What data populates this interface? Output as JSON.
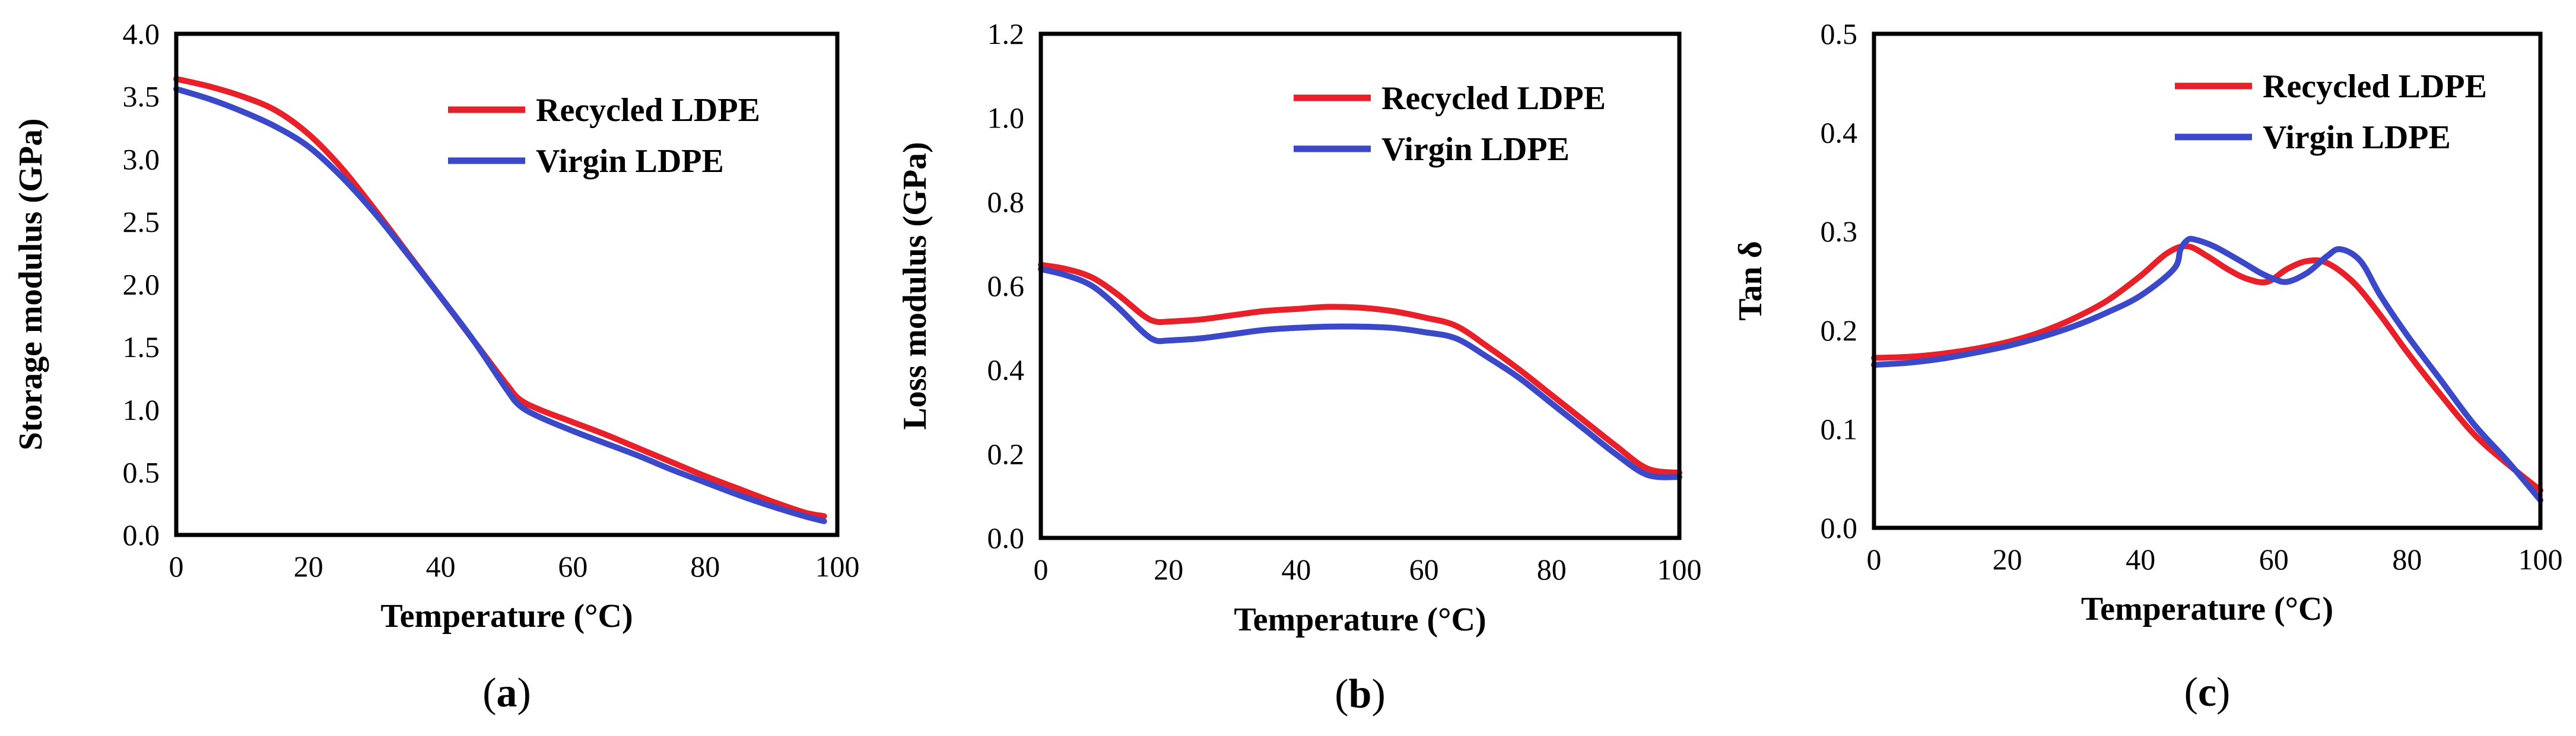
{
  "chart_data": [
    {
      "type": "line",
      "panel_label": "a",
      "xlabel": "Temperature (°C)",
      "ylabel": "Storage modulus (GPa)",
      "xlim": [
        0,
        100
      ],
      "ylim": [
        0,
        4
      ],
      "xticks": [
        0,
        20,
        40,
        60,
        80,
        100
      ],
      "yticks": [
        "0.0",
        "0.5",
        "1.0",
        "1.5",
        "2.0",
        "2.5",
        "3.0",
        "3.5",
        "4.0"
      ],
      "legend_position": "top-right",
      "series": [
        {
          "name": "Recycled LDPE",
          "color": "#e8202a",
          "x": [
            0,
            5,
            10,
            15,
            20,
            25,
            30,
            35,
            40,
            45,
            50,
            52,
            55,
            60,
            65,
            70,
            75,
            80,
            85,
            90,
            95,
            98
          ],
          "y": [
            3.64,
            3.58,
            3.5,
            3.39,
            3.2,
            2.93,
            2.6,
            2.25,
            1.9,
            1.55,
            1.2,
            1.08,
            1.0,
            0.9,
            0.8,
            0.69,
            0.58,
            0.47,
            0.37,
            0.27,
            0.18,
            0.15
          ]
        },
        {
          "name": "Virgin LDPE",
          "color": "#3b49c8",
          "x": [
            0,
            5,
            10,
            15,
            20,
            25,
            30,
            35,
            40,
            45,
            50,
            52,
            55,
            60,
            65,
            70,
            75,
            80,
            85,
            90,
            95,
            98
          ],
          "y": [
            3.56,
            3.48,
            3.38,
            3.26,
            3.1,
            2.86,
            2.57,
            2.24,
            1.9,
            1.55,
            1.16,
            1.03,
            0.94,
            0.83,
            0.73,
            0.63,
            0.52,
            0.42,
            0.32,
            0.23,
            0.15,
            0.11
          ]
        }
      ]
    },
    {
      "type": "line",
      "panel_label": "b",
      "xlabel": "Temperature (°C)",
      "ylabel": "Loss modulus (GPa)",
      "xlim": [
        0,
        100
      ],
      "ylim": [
        0,
        1.2
      ],
      "xticks": [
        0,
        20,
        40,
        60,
        80,
        100
      ],
      "yticks": [
        "0.0",
        "0.2",
        "0.4",
        "0.6",
        "0.8",
        "1.0",
        "1.2"
      ],
      "legend_position": "top-right",
      "series": [
        {
          "name": "Recycled LDPE",
          "color": "#e8202a",
          "x": [
            0,
            4,
            8,
            12,
            16,
            18,
            20,
            25,
            30,
            35,
            40,
            45,
            50,
            55,
            60,
            65,
            70,
            75,
            80,
            85,
            90,
            95,
            100
          ],
          "y": [
            0.65,
            0.64,
            0.62,
            0.58,
            0.53,
            0.515,
            0.515,
            0.52,
            0.53,
            0.54,
            0.545,
            0.55,
            0.548,
            0.54,
            0.525,
            0.505,
            0.455,
            0.4,
            0.34,
            0.28,
            0.22,
            0.165,
            0.155
          ]
        },
        {
          "name": "Virgin LDPE",
          "color": "#3b49c8",
          "x": [
            0,
            4,
            8,
            12,
            16,
            18,
            20,
            25,
            30,
            35,
            40,
            45,
            50,
            55,
            60,
            65,
            70,
            75,
            80,
            85,
            90,
            95,
            100
          ],
          "y": [
            0.64,
            0.625,
            0.6,
            0.55,
            0.49,
            0.47,
            0.47,
            0.475,
            0.485,
            0.495,
            0.5,
            0.503,
            0.503,
            0.5,
            0.49,
            0.475,
            0.43,
            0.38,
            0.32,
            0.26,
            0.2,
            0.15,
            0.145
          ]
        }
      ]
    },
    {
      "type": "line",
      "panel_label": "c",
      "xlabel": "Temperature (°C)",
      "ylabel": "Tan δ",
      "xlim": [
        0,
        100
      ],
      "ylim": [
        0,
        0.5
      ],
      "xticks": [
        0,
        20,
        40,
        60,
        80,
        100
      ],
      "yticks": [
        "0.0",
        "0.1",
        "0.2",
        "0.3",
        "0.4",
        "0.5"
      ],
      "legend_position": "top-right",
      "series": [
        {
          "name": "Recycled LDPE",
          "color": "#e8202a",
          "x": [
            0,
            5,
            10,
            15,
            20,
            25,
            30,
            35,
            40,
            44,
            47,
            50,
            53,
            56,
            59,
            62,
            65,
            68,
            72,
            76,
            80,
            85,
            90,
            95,
            100
          ],
          "y": [
            0.172,
            0.173,
            0.176,
            0.181,
            0.188,
            0.198,
            0.212,
            0.23,
            0.255,
            0.278,
            0.285,
            0.275,
            0.262,
            0.252,
            0.249,
            0.262,
            0.27,
            0.268,
            0.248,
            0.215,
            0.178,
            0.135,
            0.095,
            0.065,
            0.038
          ]
        },
        {
          "name": "Virgin LDPE",
          "color": "#3b49c8",
          "x": [
            0,
            5,
            10,
            15,
            20,
            25,
            30,
            35,
            40,
            45,
            46,
            47,
            48,
            51,
            55,
            58,
            60,
            62,
            65,
            68,
            70,
            73,
            76,
            80,
            85,
            90,
            95,
            100
          ],
          "y": [
            0.165,
            0.167,
            0.171,
            0.177,
            0.184,
            0.193,
            0.204,
            0.218,
            0.235,
            0.262,
            0.282,
            0.291,
            0.292,
            0.285,
            0.27,
            0.258,
            0.252,
            0.249,
            0.258,
            0.275,
            0.282,
            0.27,
            0.235,
            0.195,
            0.15,
            0.105,
            0.068,
            0.028
          ]
        }
      ]
    }
  ]
}
